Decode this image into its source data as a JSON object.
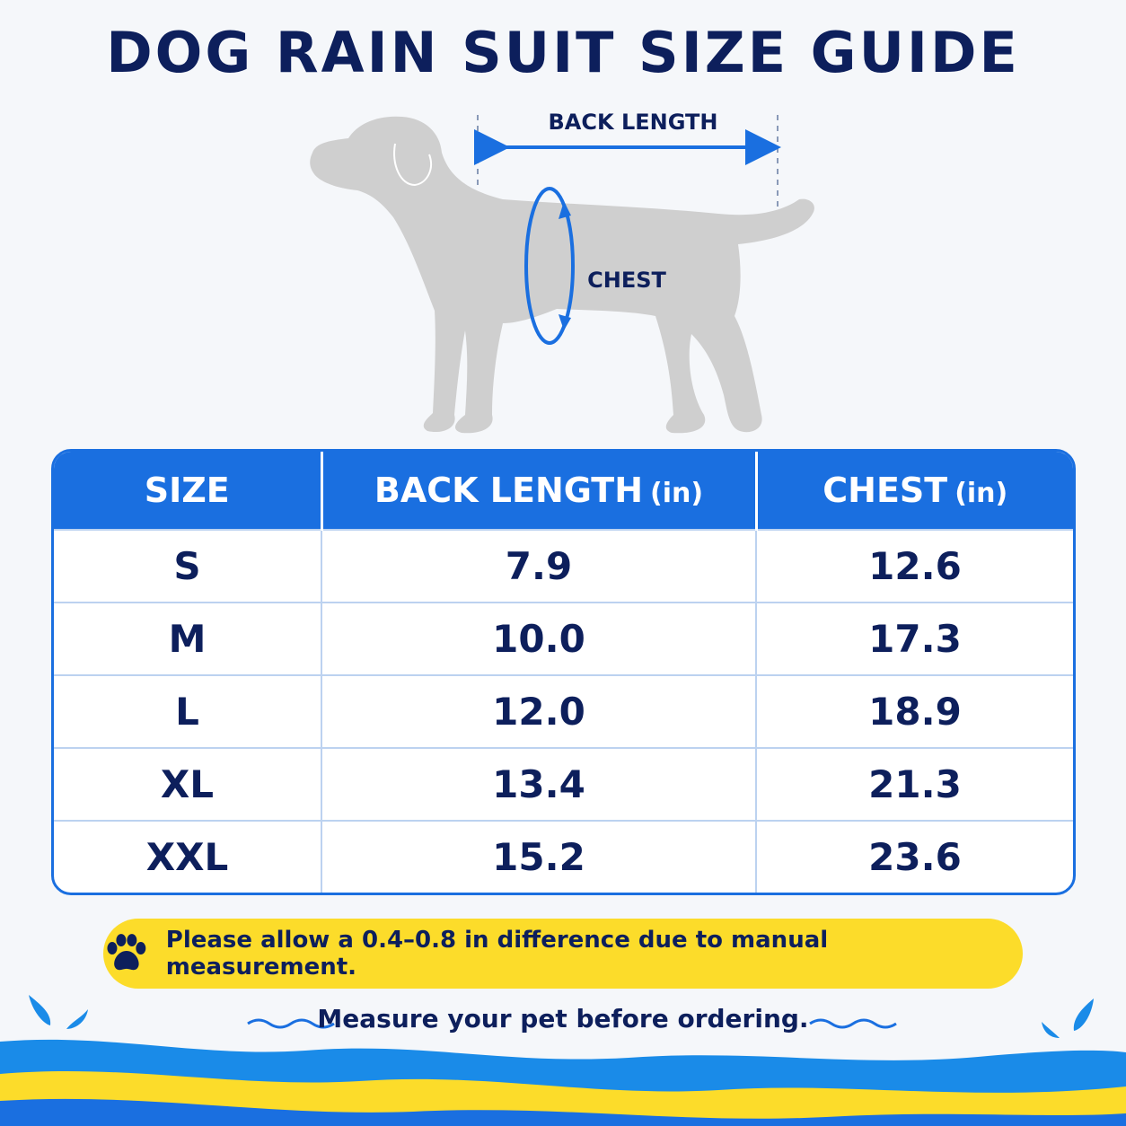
{
  "title": "DOG RAIN SUIT SIZE GUIDE",
  "diagram": {
    "back_length_label": "BACK LENGTH",
    "chest_label": "CHEST"
  },
  "table": {
    "headers": [
      {
        "label": "SIZE",
        "unit": ""
      },
      {
        "label": "BACK LENGTH",
        "unit": "(in)"
      },
      {
        "label": "CHEST",
        "unit": "(in)"
      }
    ],
    "rows": [
      {
        "size": "S",
        "back_length": "7.9",
        "chest": "12.6"
      },
      {
        "size": "M",
        "back_length": "10.0",
        "chest": "17.3"
      },
      {
        "size": "L",
        "back_length": "12.0",
        "chest": "18.9"
      },
      {
        "size": "XL",
        "back_length": "13.4",
        "chest": "21.3"
      },
      {
        "size": "XXL",
        "back_length": "15.2",
        "chest": "23.6"
      }
    ]
  },
  "note": {
    "icon": "paw-icon",
    "text": "Please allow a 0.4–0.8 in difference due to manual measurement."
  },
  "tagline": "Measure your pet before ordering.",
  "colors": {
    "navy": "#0d1f5c",
    "blue": "#1a6fe0",
    "yellow": "#fcdc2a",
    "dog_gray": "#cfcfcf"
  }
}
